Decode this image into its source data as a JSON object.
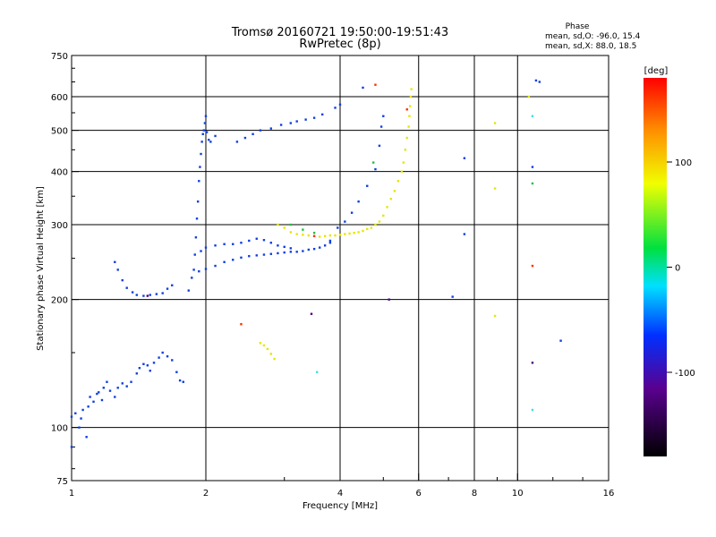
{
  "chart_data": {
    "type": "scatter",
    "title": "Tromsø 20160721 19:50:00-19:51:43",
    "subtitle": "RwPretec (8p)",
    "xlabel": "Frequency [MHz]",
    "ylabel": "Stationary phase Virtual Height [km]",
    "xscale": "log",
    "yscale": "log",
    "xlim": [
      1,
      16
    ],
    "ylim": [
      75,
      750
    ],
    "xticks": [
      1,
      2,
      4,
      6,
      8,
      10,
      16
    ],
    "yticks": [
      75,
      100,
      200,
      300,
      400,
      500,
      600,
      750
    ],
    "grid_x": [
      2,
      4,
      6,
      8,
      10
    ],
    "grid_y": [
      100,
      200,
      300,
      400,
      500,
      600
    ],
    "phase_box": {
      "title": "Phase",
      "line_o": "mean, sd,O:  -96.0, 15.4",
      "line_x": "mean, sd,X:  88.0, 18.5"
    },
    "colorbar": {
      "label": "[deg]",
      "range": [
        -180,
        180
      ],
      "ticks": [
        100,
        0,
        -100
      ]
    },
    "series": [
      {
        "phase": -100,
        "color": "#1040e0",
        "points": [
          [
            1.0,
            90
          ],
          [
            1.0,
            106
          ],
          [
            1.02,
            108
          ],
          [
            1.04,
            100
          ],
          [
            1.05,
            105
          ],
          [
            1.06,
            110
          ],
          [
            1.08,
            95
          ],
          [
            1.09,
            112
          ],
          [
            1.1,
            118
          ],
          [
            1.12,
            115
          ],
          [
            1.14,
            120
          ],
          [
            1.15,
            121
          ],
          [
            1.17,
            116
          ],
          [
            1.18,
            124
          ],
          [
            1.2,
            128
          ],
          [
            1.22,
            122
          ],
          [
            1.25,
            118
          ],
          [
            1.27,
            124
          ],
          [
            1.3,
            127
          ],
          [
            1.33,
            125
          ],
          [
            1.36,
            128
          ],
          [
            1.4,
            134
          ],
          [
            1.42,
            138
          ],
          [
            1.45,
            141
          ],
          [
            1.48,
            140
          ],
          [
            1.5,
            136
          ],
          [
            1.53,
            142
          ],
          [
            1.57,
            146
          ],
          [
            1.6,
            150
          ],
          [
            1.64,
            147
          ],
          [
            1.68,
            144
          ],
          [
            1.72,
            135
          ],
          [
            1.75,
            129
          ],
          [
            1.78,
            128
          ],
          [
            1.25,
            245
          ],
          [
            1.27,
            235
          ],
          [
            1.3,
            222
          ],
          [
            1.33,
            213
          ],
          [
            1.37,
            208
          ],
          [
            1.4,
            205
          ],
          [
            1.45,
            204
          ],
          [
            1.5,
            205
          ],
          [
            1.55,
            206
          ],
          [
            1.6,
            207
          ],
          [
            1.64,
            212
          ],
          [
            1.68,
            216
          ],
          [
            1.83,
            210
          ],
          [
            1.86,
            225
          ],
          [
            1.88,
            235
          ],
          [
            1.89,
            255
          ],
          [
            1.9,
            280
          ],
          [
            1.91,
            310
          ],
          [
            1.92,
            340
          ],
          [
            1.93,
            380
          ],
          [
            1.94,
            410
          ],
          [
            1.95,
            440
          ],
          [
            1.96,
            470
          ],
          [
            1.97,
            490
          ],
          [
            1.98,
            500
          ],
          [
            1.99,
            520
          ],
          [
            2.0,
            540
          ],
          [
            2.01,
            495
          ],
          [
            2.03,
            475
          ],
          [
            2.05,
            470
          ],
          [
            2.1,
            485
          ],
          [
            1.93,
            233
          ],
          [
            2.0,
            236
          ],
          [
            2.1,
            240
          ],
          [
            2.2,
            245
          ],
          [
            2.3,
            248
          ],
          [
            2.4,
            251
          ],
          [
            2.5,
            253
          ],
          [
            2.6,
            254
          ],
          [
            2.7,
            255
          ],
          [
            2.8,
            256
          ],
          [
            2.9,
            257
          ],
          [
            3.0,
            258
          ],
          [
            3.1,
            259
          ],
          [
            3.2,
            259
          ],
          [
            3.3,
            260
          ],
          [
            3.4,
            262
          ],
          [
            3.5,
            263
          ],
          [
            3.6,
            265
          ],
          [
            3.7,
            268
          ],
          [
            3.8,
            272
          ],
          [
            1.95,
            260
          ],
          [
            2.0,
            265
          ],
          [
            2.1,
            268
          ],
          [
            2.2,
            270
          ],
          [
            2.3,
            270
          ],
          [
            2.4,
            272
          ],
          [
            2.5,
            275
          ],
          [
            2.6,
            278
          ],
          [
            2.7,
            276
          ],
          [
            2.8,
            272
          ],
          [
            2.9,
            268
          ],
          [
            3.0,
            266
          ],
          [
            3.1,
            264
          ],
          [
            2.35,
            470
          ],
          [
            2.45,
            480
          ],
          [
            2.55,
            490
          ],
          [
            2.65,
            500
          ],
          [
            2.8,
            505
          ],
          [
            2.95,
            515
          ],
          [
            3.1,
            520
          ],
          [
            3.2,
            525
          ],
          [
            3.35,
            530
          ],
          [
            3.5,
            535
          ],
          [
            3.65,
            545
          ],
          [
            3.8,
            275
          ],
          [
            3.95,
            295
          ],
          [
            4.1,
            305
          ],
          [
            4.25,
            320
          ],
          [
            4.4,
            340
          ],
          [
            4.6,
            370
          ],
          [
            4.8,
            405
          ],
          [
            4.9,
            460
          ],
          [
            4.95,
            510
          ],
          [
            5.0,
            540
          ],
          [
            3.9,
            565
          ],
          [
            4.0,
            575
          ],
          [
            4.5,
            630
          ],
          [
            7.15,
            203
          ],
          [
            7.6,
            285
          ],
          [
            7.6,
            430
          ],
          [
            10.8,
            410
          ],
          [
            11.0,
            655
          ],
          [
            11.2,
            650
          ],
          [
            12.5,
            160
          ]
        ]
      },
      {
        "phase": 100,
        "color": "#e6e600",
        "points": [
          [
            2.9,
            300
          ],
          [
            3.0,
            295
          ],
          [
            3.1,
            288
          ],
          [
            3.2,
            285
          ],
          [
            3.3,
            284
          ],
          [
            3.4,
            283
          ],
          [
            3.5,
            282
          ],
          [
            3.6,
            281
          ],
          [
            3.7,
            282
          ],
          [
            3.8,
            283
          ],
          [
            3.9,
            283
          ],
          [
            4.0,
            284
          ],
          [
            4.1,
            285
          ],
          [
            4.2,
            286
          ],
          [
            4.3,
            287
          ],
          [
            4.4,
            288
          ],
          [
            4.5,
            290
          ],
          [
            4.6,
            293
          ],
          [
            4.7,
            295
          ],
          [
            4.8,
            300
          ],
          [
            4.9,
            305
          ],
          [
            5.0,
            315
          ],
          [
            5.1,
            330
          ],
          [
            5.2,
            345
          ],
          [
            5.3,
            360
          ],
          [
            5.4,
            380
          ],
          [
            5.5,
            400
          ],
          [
            5.55,
            420
          ],
          [
            5.6,
            450
          ],
          [
            5.65,
            480
          ],
          [
            5.7,
            510
          ],
          [
            5.72,
            540
          ],
          [
            5.74,
            570
          ],
          [
            5.76,
            600
          ],
          [
            5.78,
            625
          ],
          [
            2.65,
            158
          ],
          [
            2.7,
            156
          ],
          [
            2.75,
            153
          ],
          [
            2.8,
            149
          ],
          [
            2.85,
            145
          ],
          [
            8.9,
            520
          ],
          [
            8.9,
            365
          ],
          [
            8.9,
            183
          ],
          [
            10.6,
            600
          ]
        ]
      },
      {
        "phase": 0,
        "color": "#20c040",
        "points": [
          [
            3.1,
            300
          ],
          [
            3.3,
            292
          ],
          [
            3.5,
            287
          ],
          [
            4.75,
            420
          ],
          [
            10.8,
            375
          ]
        ]
      },
      {
        "phase": 150,
        "color": "#ff3000",
        "points": [
          [
            2.4,
            175
          ],
          [
            3.5,
            282
          ],
          [
            4.8,
            640
          ],
          [
            5.65,
            560
          ],
          [
            10.8,
            240
          ]
        ]
      },
      {
        "phase": 50,
        "color": "#40e0e0",
        "points": [
          [
            3.55,
            135
          ],
          [
            10.8,
            540
          ],
          [
            10.8,
            110
          ]
        ]
      },
      {
        "phase": -150,
        "color": "#500080",
        "points": [
          [
            1.48,
            204
          ],
          [
            3.45,
            185
          ],
          [
            5.15,
            200
          ],
          [
            10.8,
            142
          ]
        ]
      }
    ]
  }
}
